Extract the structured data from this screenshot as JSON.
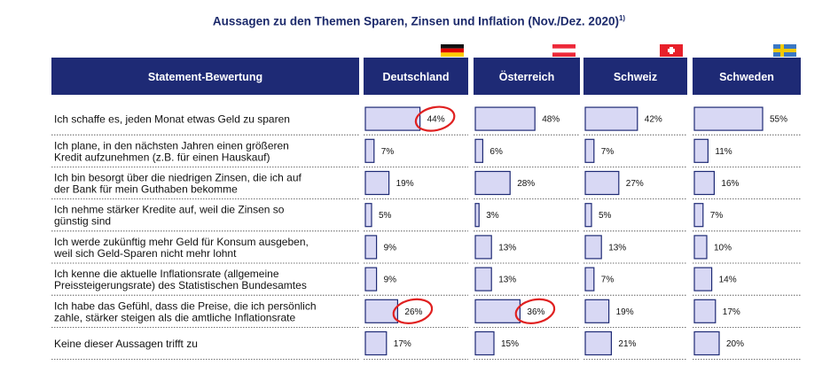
{
  "title": {
    "text": "Aussagen zu den Themen Sparen, Zinsen und Inflation (Nov./Dez. 2020)",
    "footnote_mark": "1)"
  },
  "colors": {
    "header_bg": "#1e2a75",
    "header_text": "#ffffff",
    "bar_fill": "#d8d8f4",
    "bar_stroke": "#1e2a75",
    "text": "#111111",
    "highlight_circle": "#e02020"
  },
  "table": {
    "statement_header": "Statement-Bewertung",
    "columns": [
      {
        "name": "Deutschland",
        "flag": "germany-flag"
      },
      {
        "name": "Österreich",
        "flag": "austria-flag"
      },
      {
        "name": "Schweiz",
        "flag": "switzerland-flag"
      },
      {
        "name": "Schweden",
        "flag": "sweden-flag"
      }
    ],
    "rows": [
      {
        "label": [
          "Ich schaffe es, jeden Monat etwas Geld zu sparen"
        ],
        "labels": [
          "44%",
          "48%",
          "42%",
          "55%"
        ]
      },
      {
        "label": [
          "Ich plane, in den nächsten Jahren einen größeren",
          "Kredit aufzunehmen (z.B. für einen Hauskauf)"
        ],
        "labels": [
          "7%",
          "6%",
          "7%",
          "11%"
        ]
      },
      {
        "label": [
          "Ich bin besorgt über die niedrigen Zinsen, die ich auf",
          "der Bank für mein Guthaben bekomme"
        ],
        "labels": [
          "19%",
          "28%",
          "27%",
          "16%"
        ]
      },
      {
        "label": [
          "Ich nehme stärker Kredite auf, weil die Zinsen so",
          "günstig sind"
        ],
        "labels": [
          "5%",
          "3%",
          "5%",
          "7%"
        ]
      },
      {
        "label": [
          "Ich werde zukünftig mehr Geld für Konsum ausgeben,",
          "weil sich Geld-Sparen nicht mehr lohnt"
        ],
        "labels": [
          "9%",
          "13%",
          "13%",
          "10%"
        ]
      },
      {
        "label": [
          "Ich kenne die aktuelle Inflationsrate (allgemeine",
          "Preissteigerungsrate) des Statistischen Bundesamtes"
        ],
        "labels": [
          "9%",
          "13%",
          "7%",
          "14%"
        ]
      },
      {
        "label": [
          "Ich habe das Gefühl, dass die Preise, die ich persönlich",
          "zahle, stärker steigen als die amtliche Inflationsrate"
        ],
        "labels": [
          "26%",
          "36%",
          "19%",
          "17%"
        ]
      },
      {
        "label": [
          "Keine dieser Aussagen trifft zu"
        ],
        "labels": [
          "17%",
          "15%",
          "21%",
          "20%"
        ]
      }
    ]
  },
  "chart_data": {
    "type": "bar",
    "title": "Aussagen zu den Themen Sparen, Zinsen und Inflation (Nov./Dez. 2020)",
    "unit": "%",
    "orientation": "horizontal",
    "categories": [
      "Ich schaffe es, jeden Monat etwas Geld zu sparen",
      "Ich plane, in den nächsten Jahren einen größeren Kredit aufzunehmen (z.B. für einen Hauskauf)",
      "Ich bin besorgt über die niedrigen Zinsen, die ich auf der Bank für mein Guthaben bekomme",
      "Ich nehme stärker Kredite auf, weil die Zinsen so günstig sind",
      "Ich werde zukünftig mehr Geld für Konsum ausgeben, weil sich Geld-Sparen nicht mehr lohnt",
      "Ich kenne die aktuelle Inflationsrate (allgemeine Preissteigerungsrate) des Statistischen Bundesamtes",
      "Ich habe das Gefühl, dass die Preise, die ich persönlich zahle, stärker steigen als die amtliche Inflationsrate",
      "Keine dieser Aussagen trifft zu"
    ],
    "series": [
      {
        "name": "Deutschland",
        "values": [
          44,
          7,
          19,
          5,
          9,
          9,
          26,
          17
        ]
      },
      {
        "name": "Österreich",
        "values": [
          48,
          6,
          28,
          3,
          13,
          13,
          36,
          15
        ]
      },
      {
        "name": "Schweiz",
        "values": [
          42,
          7,
          27,
          5,
          13,
          7,
          19,
          21
        ]
      },
      {
        "name": "Schweden",
        "values": [
          55,
          11,
          16,
          7,
          10,
          14,
          17,
          20
        ]
      }
    ],
    "highlighted": [
      {
        "series": "Deutschland",
        "category_index": 0
      },
      {
        "series": "Deutschland",
        "category_index": 6
      },
      {
        "series": "Österreich",
        "category_index": 6
      }
    ]
  }
}
